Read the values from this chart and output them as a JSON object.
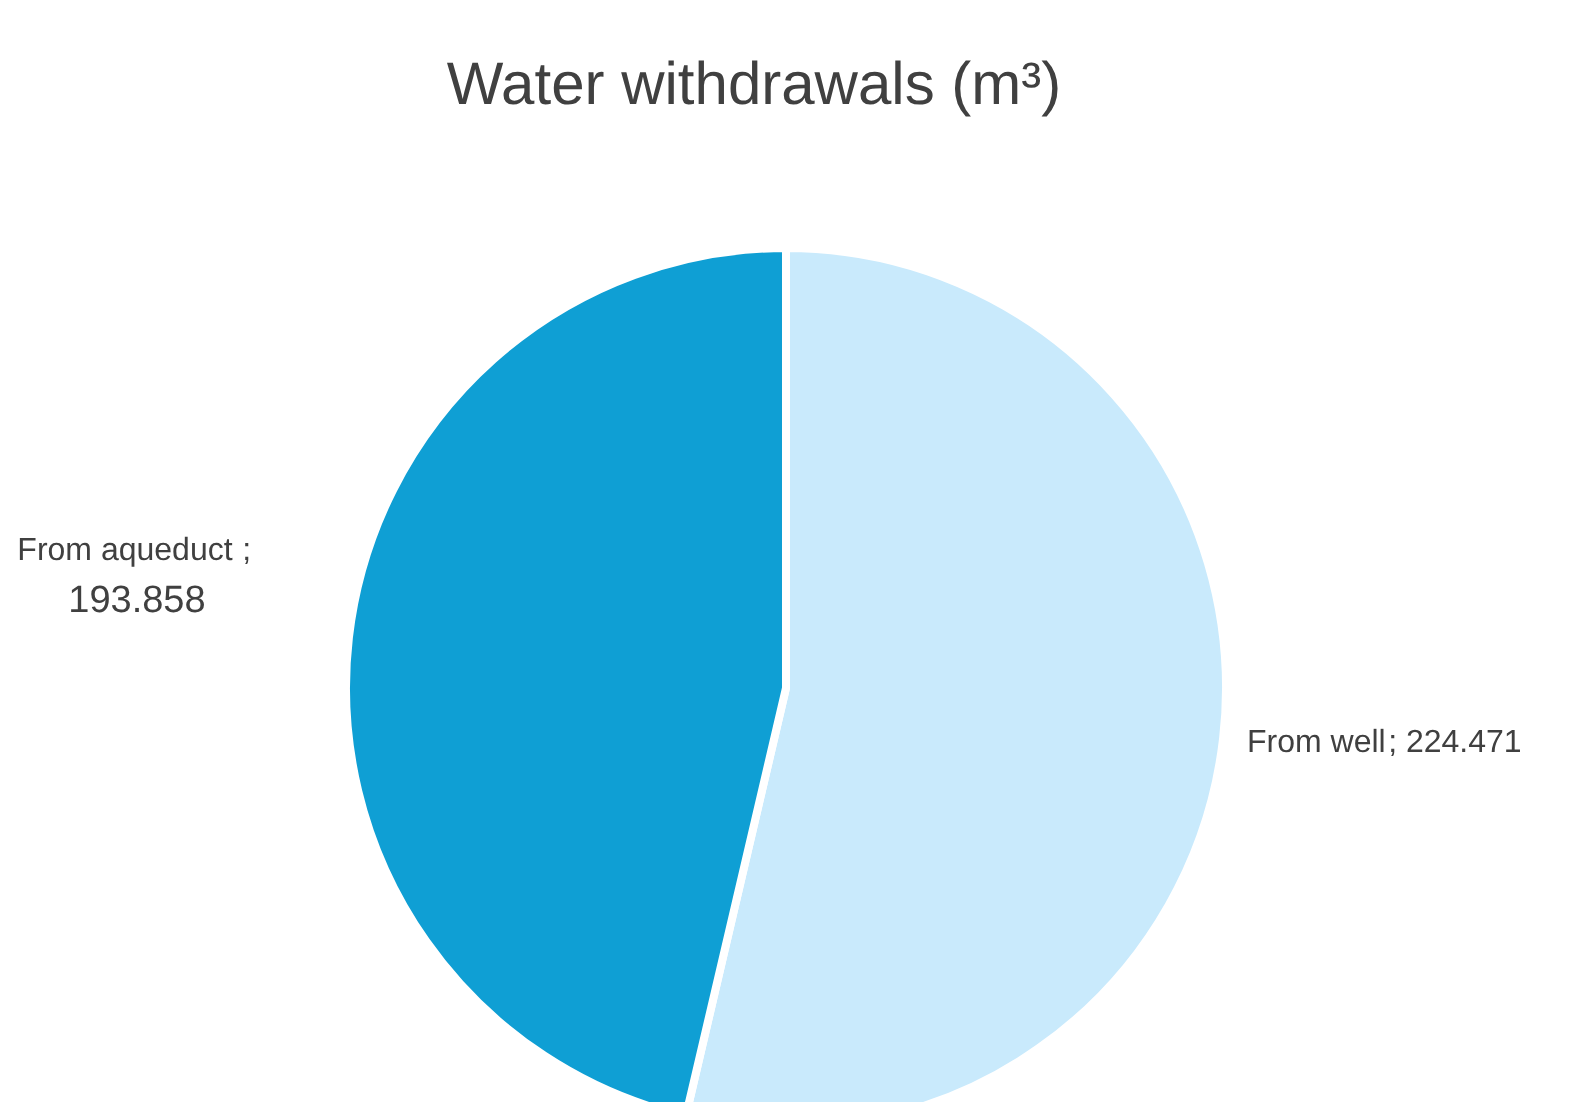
{
  "chart_data": {
    "type": "pie",
    "title": "Water withdrawals (m³)",
    "categories": [
      "From well",
      "From aqueduct"
    ],
    "values": [
      224.471,
      193.858
    ],
    "value_labels": [
      "; 224.471",
      "; 193.858"
    ],
    "colors": [
      "#c9eafc",
      "#0f9fd4"
    ]
  }
}
